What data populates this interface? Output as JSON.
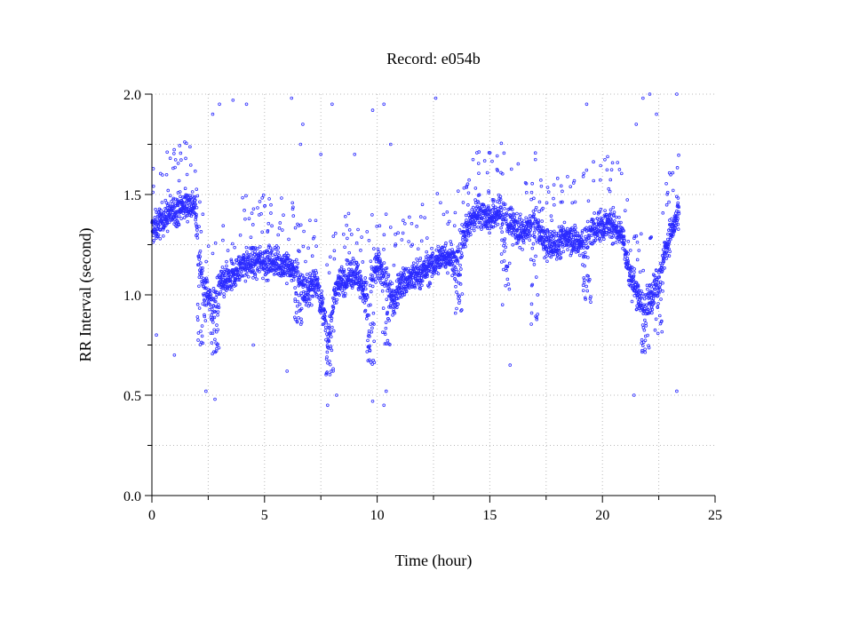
{
  "chart_data": {
    "type": "scatter",
    "title": "Record:  e054b",
    "xlabel": "Time (hour)",
    "ylabel": "RR Interval (second)",
    "xlim": [
      0,
      25
    ],
    "ylim": [
      0.0,
      2.0
    ],
    "xticks": [
      0,
      5,
      10,
      15,
      20,
      25
    ],
    "yticks": [
      0.0,
      0.5,
      1.0,
      1.5,
      2.0
    ],
    "xtick_labels": [
      "0",
      "5",
      "10",
      "15",
      "20",
      "25"
    ],
    "ytick_labels": [
      "0.0",
      "0.5",
      "1.0",
      "1.5",
      "2.0"
    ],
    "grid": true,
    "marker_color": "#2a2aff",
    "record_end_hour": 23.4,
    "series": [
      {
        "trend": [
          [
            0.0,
            1.32
          ],
          [
            0.5,
            1.38
          ],
          [
            1.0,
            1.42
          ],
          [
            1.5,
            1.45
          ],
          [
            1.9,
            1.45
          ],
          [
            2.1,
            1.2
          ],
          [
            2.3,
            1.05
          ],
          [
            2.7,
            0.95
          ],
          [
            3.0,
            1.05
          ],
          [
            3.5,
            1.08
          ],
          [
            4.0,
            1.15
          ],
          [
            5.0,
            1.17
          ],
          [
            6.0,
            1.15
          ],
          [
            6.5,
            1.1
          ],
          [
            6.8,
            1.0
          ],
          [
            7.3,
            1.08
          ],
          [
            7.8,
            0.8
          ],
          [
            8.2,
            1.05
          ],
          [
            9.0,
            1.12
          ],
          [
            9.5,
            1.0
          ],
          [
            10.0,
            1.15
          ],
          [
            10.4,
            1.1
          ],
          [
            10.7,
            0.95
          ],
          [
            11.0,
            1.05
          ],
          [
            11.8,
            1.1
          ],
          [
            12.5,
            1.15
          ],
          [
            13.0,
            1.2
          ],
          [
            13.5,
            1.18
          ],
          [
            13.8,
            1.3
          ],
          [
            14.5,
            1.42
          ],
          [
            15.0,
            1.38
          ],
          [
            15.5,
            1.42
          ],
          [
            16.0,
            1.35
          ],
          [
            16.5,
            1.3
          ],
          [
            17.0,
            1.38
          ],
          [
            17.5,
            1.25
          ],
          [
            18.0,
            1.25
          ],
          [
            18.5,
            1.3
          ],
          [
            19.0,
            1.25
          ],
          [
            19.5,
            1.32
          ],
          [
            20.0,
            1.35
          ],
          [
            20.5,
            1.35
          ],
          [
            20.9,
            1.3
          ],
          [
            21.2,
            1.1
          ],
          [
            21.8,
            0.95
          ],
          [
            22.2,
            1.0
          ],
          [
            22.6,
            1.15
          ],
          [
            23.0,
            1.3
          ],
          [
            23.4,
            1.4
          ]
        ],
        "dips": [
          [
            2.2,
            0.75
          ],
          [
            2.8,
            0.7
          ],
          [
            6.5,
            0.85
          ],
          [
            7.9,
            0.6
          ],
          [
            9.7,
            0.65
          ],
          [
            10.4,
            0.75
          ],
          [
            13.6,
            0.9
          ],
          [
            15.7,
            0.95
          ],
          [
            17.0,
            0.85
          ],
          [
            19.3,
            0.95
          ],
          [
            21.9,
            0.7
          ],
          [
            22.5,
            0.8
          ]
        ],
        "outliers": [
          [
            2.7,
            1.9
          ],
          [
            3.0,
            1.95
          ],
          [
            3.6,
            1.97
          ],
          [
            4.2,
            1.95
          ],
          [
            6.2,
            1.98
          ],
          [
            6.7,
            1.85
          ],
          [
            8.0,
            1.95
          ],
          [
            9.8,
            1.92
          ],
          [
            10.3,
            1.95
          ],
          [
            12.6,
            1.98
          ],
          [
            19.3,
            1.95
          ],
          [
            21.5,
            1.85
          ],
          [
            21.8,
            1.98
          ],
          [
            22.1,
            2.0
          ],
          [
            22.4,
            1.9
          ],
          [
            23.3,
            2.0
          ],
          [
            2.4,
            0.52
          ],
          [
            2.8,
            0.48
          ],
          [
            7.8,
            0.45
          ],
          [
            8.2,
            0.5
          ],
          [
            9.8,
            0.47
          ],
          [
            10.3,
            0.45
          ],
          [
            10.4,
            0.52
          ],
          [
            15.9,
            0.65
          ],
          [
            21.4,
            0.5
          ],
          [
            23.3,
            0.52
          ],
          [
            0.2,
            0.8
          ],
          [
            1.0,
            0.7
          ],
          [
            2.9,
            0.75
          ],
          [
            4.5,
            0.75
          ],
          [
            6.0,
            0.62
          ],
          [
            7.5,
            1.7
          ],
          [
            9.0,
            1.7
          ],
          [
            10.6,
            1.75
          ],
          [
            1.5,
            1.68
          ],
          [
            6.6,
            1.75
          ]
        ]
      }
    ]
  }
}
